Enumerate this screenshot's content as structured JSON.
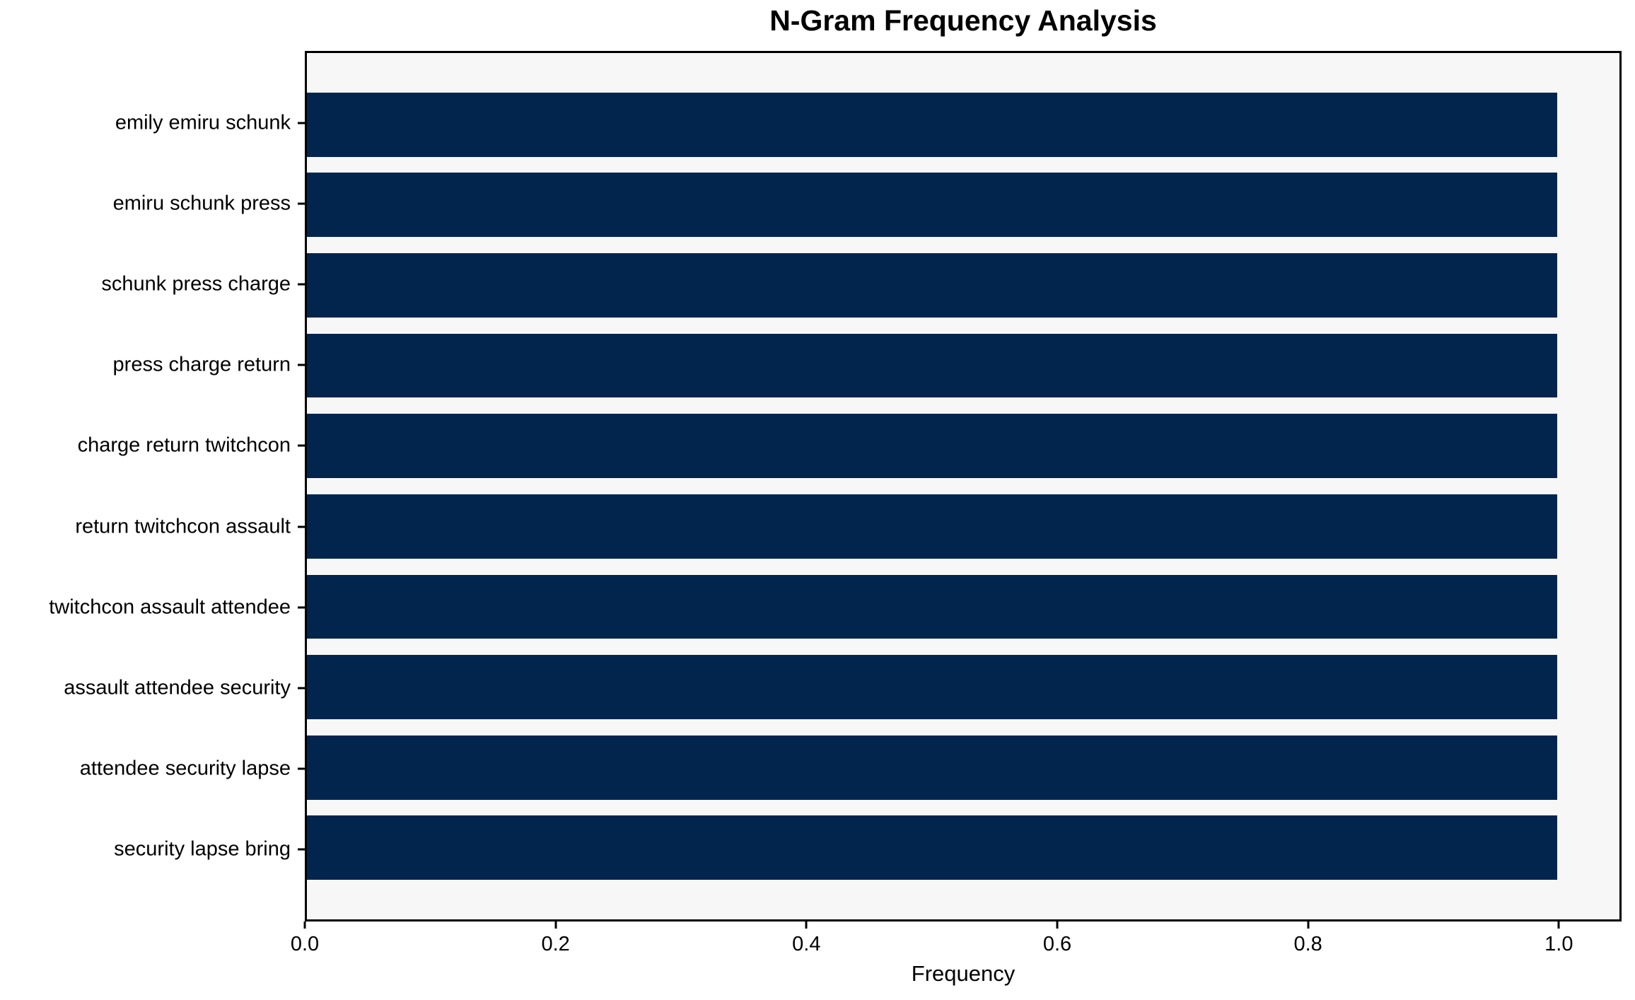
{
  "chart_data": {
    "type": "bar",
    "orientation": "horizontal",
    "title": "N-Gram Frequency Analysis",
    "xlabel": "Frequency",
    "ylabel": "",
    "categories": [
      "emily emiru schunk",
      "emiru schunk press",
      "schunk press charge",
      "press charge return",
      "charge return twitchcon",
      "return twitchcon assault",
      "twitchcon assault attendee",
      "assault attendee security",
      "attendee security lapse",
      "security lapse bring"
    ],
    "values": [
      1.0,
      1.0,
      1.0,
      1.0,
      1.0,
      1.0,
      1.0,
      1.0,
      1.0,
      1.0
    ],
    "xlim": [
      0,
      1.05
    ],
    "xticks": [
      0.0,
      0.2,
      0.4,
      0.6,
      0.8,
      1.0
    ],
    "xtick_labels": [
      "0.0",
      "0.2",
      "0.4",
      "0.6",
      "0.8",
      "1.0"
    ],
    "bar_height_ratio": 0.8,
    "grid": false,
    "legend": null,
    "colors": {
      "bar": "#02254e",
      "plot_background": "#f7f7f7",
      "figure_background": "#ffffff",
      "spine": "#000000",
      "text": "#000000"
    }
  }
}
